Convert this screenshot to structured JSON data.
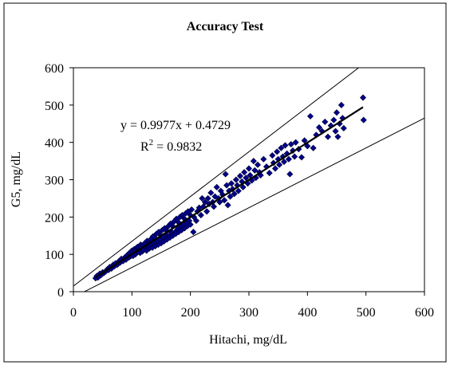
{
  "chart_data": {
    "type": "scatter",
    "title": "Accuracy Test",
    "xlabel": "Hitachi, mg/dL",
    "ylabel": "G5, mg/dL",
    "xlim": [
      0,
      600
    ],
    "ylim": [
      0,
      600
    ],
    "x_ticks": [
      0,
      100,
      200,
      300,
      400,
      500,
      600
    ],
    "y_ticks": [
      0,
      100,
      200,
      300,
      400,
      500,
      600
    ],
    "grid": false,
    "legend": "none",
    "marker_color": "#00008B",
    "trendline": {
      "slope": 0.9977,
      "intercept": 0.4729,
      "equation_text": "y = 0.9977x + 0.4729",
      "r2_prefix": "R",
      "r2_exponent": "2",
      "r2_suffix": " = 0.9832",
      "x_range": [
        38,
        495
      ]
    },
    "guide_lines": [
      {
        "slope": 1.2,
        "intercept": 15
      },
      {
        "slope": 0.8,
        "intercept": -15
      }
    ],
    "series": [
      {
        "points": [
          [
            38,
            36
          ],
          [
            40,
            42
          ],
          [
            42,
            38
          ],
          [
            45,
            48
          ],
          [
            47,
            44
          ],
          [
            50,
            52
          ],
          [
            52,
            50
          ],
          [
            55,
            54
          ],
          [
            58,
            60
          ],
          [
            60,
            58
          ],
          [
            62,
            66
          ],
          [
            65,
            62
          ],
          [
            68,
            72
          ],
          [
            70,
            68
          ],
          [
            72,
            76
          ],
          [
            75,
            72
          ],
          [
            78,
            82
          ],
          [
            80,
            78
          ],
          [
            82,
            88
          ],
          [
            85,
            82
          ],
          [
            88,
            92
          ],
          [
            90,
            86
          ],
          [
            92,
            98
          ],
          [
            95,
            92
          ],
          [
            96,
            104
          ],
          [
            98,
            95
          ],
          [
            100,
            110
          ],
          [
            100,
            100
          ],
          [
            102,
            96
          ],
          [
            104,
            114
          ],
          [
            105,
            108
          ],
          [
            106,
            100
          ],
          [
            108,
            118
          ],
          [
            110,
            106
          ],
          [
            110,
            120
          ],
          [
            112,
            110
          ],
          [
            114,
            104
          ],
          [
            115,
            126
          ],
          [
            116,
            116
          ],
          [
            118,
            108
          ],
          [
            120,
            124
          ],
          [
            120,
            112
          ],
          [
            122,
            130
          ],
          [
            124,
            118
          ],
          [
            125,
            110
          ],
          [
            126,
            136
          ],
          [
            128,
            122
          ],
          [
            130,
            116
          ],
          [
            130,
            132
          ],
          [
            132,
            140
          ],
          [
            133,
            125
          ],
          [
            135,
            118
          ],
          [
            136,
            148
          ],
          [
            138,
            130
          ],
          [
            140,
            122
          ],
          [
            140,
            142
          ],
          [
            142,
            155
          ],
          [
            144,
            135
          ],
          [
            145,
            126
          ],
          [
            146,
            160
          ],
          [
            148,
            140
          ],
          [
            150,
            130
          ],
          [
            150,
            150
          ],
          [
            152,
            165
          ],
          [
            154,
            145
          ],
          [
            155,
            135
          ],
          [
            156,
            170
          ],
          [
            158,
            152
          ],
          [
            160,
            140
          ],
          [
            160,
            162
          ],
          [
            162,
            175
          ],
          [
            164,
            150
          ],
          [
            165,
            145
          ],
          [
            166,
            182
          ],
          [
            168,
            160
          ],
          [
            170,
            150
          ],
          [
            170,
            175
          ],
          [
            172,
            188
          ],
          [
            174,
            160
          ],
          [
            175,
            155
          ],
          [
            176,
            195
          ],
          [
            178,
            168
          ],
          [
            180,
            160
          ],
          [
            180,
            185
          ],
          [
            182,
            200
          ],
          [
            184,
            175
          ],
          [
            185,
            165
          ],
          [
            186,
            205
          ],
          [
            188,
            180
          ],
          [
            190,
            170
          ],
          [
            190,
            195
          ],
          [
            192,
            210
          ],
          [
            194,
            185
          ],
          [
            195,
            176
          ],
          [
            196,
            215
          ],
          [
            198,
            190
          ],
          [
            200,
            180
          ],
          [
            200,
            205
          ],
          [
            202,
            220
          ],
          [
            205,
            160
          ],
          [
            206,
            200
          ],
          [
            210,
            190
          ],
          [
            212,
            215
          ],
          [
            215,
            225
          ],
          [
            218,
            205
          ],
          [
            220,
            250
          ],
          [
            222,
            228
          ],
          [
            225,
            240
          ],
          [
            228,
            215
          ],
          [
            230,
            250
          ],
          [
            232,
            235
          ],
          [
            235,
            265
          ],
          [
            238,
            240
          ],
          [
            240,
            228
          ],
          [
            242,
            255
          ],
          [
            245,
            280
          ],
          [
            248,
            250
          ],
          [
            250,
            240
          ],
          [
            252,
            270
          ],
          [
            255,
            260
          ],
          [
            258,
            245
          ],
          [
            260,
            315
          ],
          [
            262,
            285
          ],
          [
            264,
            232
          ],
          [
            266,
            270
          ],
          [
            268,
            255
          ],
          [
            270,
            290
          ],
          [
            272,
            275
          ],
          [
            275,
            262
          ],
          [
            278,
            300
          ],
          [
            280,
            285
          ],
          [
            282,
            270
          ],
          [
            285,
            310
          ],
          [
            288,
            295
          ],
          [
            290,
            280
          ],
          [
            292,
            320
          ],
          [
            295,
            305
          ],
          [
            298,
            290
          ],
          [
            300,
            330
          ],
          [
            302,
            312
          ],
          [
            305,
            298
          ],
          [
            308,
            350
          ],
          [
            310,
            325
          ],
          [
            312,
            305
          ],
          [
            315,
            340
          ],
          [
            318,
            320
          ],
          [
            320,
            312
          ],
          [
            325,
            355
          ],
          [
            330,
            335
          ],
          [
            335,
            318
          ],
          [
            340,
            365
          ],
          [
            342,
            345
          ],
          [
            345,
            330
          ],
          [
            348,
            375
          ],
          [
            350,
            355
          ],
          [
            352,
            340
          ],
          [
            355,
            385
          ],
          [
            358,
            362
          ],
          [
            360,
            348
          ],
          [
            362,
            392
          ],
          [
            365,
            370
          ],
          [
            368,
            355
          ],
          [
            370,
            315
          ],
          [
            372,
            395
          ],
          [
            375,
            378
          ],
          [
            378,
            362
          ],
          [
            380,
            400
          ],
          [
            385,
            382
          ],
          [
            390,
            360
          ],
          [
            395,
            405
          ],
          [
            400,
            390
          ],
          [
            405,
            470
          ],
          [
            410,
            385
          ],
          [
            415,
            420
          ],
          [
            420,
            440
          ],
          [
            425,
            430
          ],
          [
            430,
            455
          ],
          [
            435,
            415
          ],
          [
            440,
            445
          ],
          [
            445,
            460
          ],
          [
            448,
            430
          ],
          [
            450,
            480
          ],
          [
            452,
            415
          ],
          [
            455,
            450
          ],
          [
            458,
            500
          ],
          [
            460,
            465
          ],
          [
            462,
            438
          ],
          [
            495,
            520
          ],
          [
            496,
            460
          ]
        ]
      }
    ]
  }
}
